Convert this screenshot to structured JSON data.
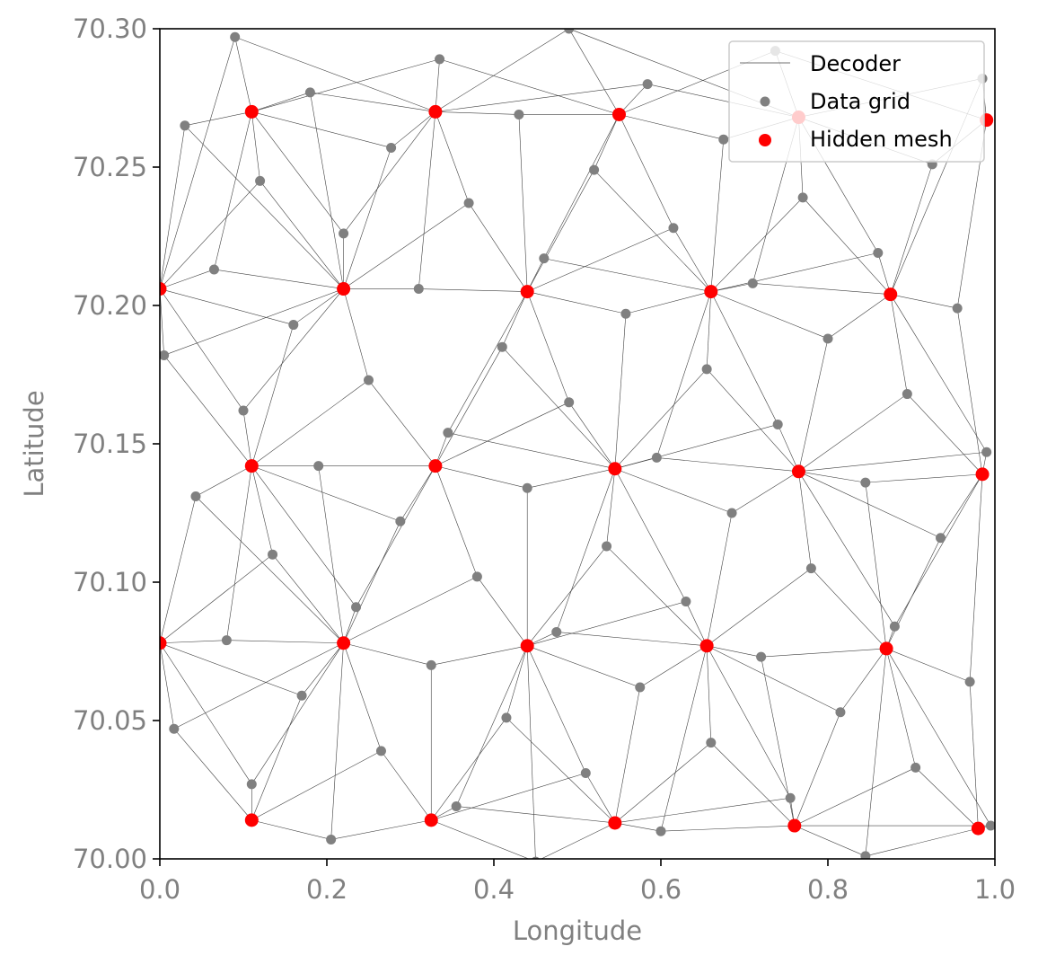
{
  "chart_data": {
    "type": "scatter",
    "xlabel": "Longitude",
    "ylabel": "Latitude",
    "xlim": [
      0.0,
      1.0
    ],
    "ylim": [
      70.0,
      70.3
    ],
    "x_ticks": [
      "0.0",
      "0.2",
      "0.4",
      "0.6",
      "0.8",
      "1.0"
    ],
    "y_ticks": [
      "70.00",
      "70.05",
      "70.10",
      "70.15",
      "70.20",
      "70.25",
      "70.30"
    ],
    "grid": false,
    "legend_position": "top-right",
    "colors": {
      "decoder": "#404040",
      "data_grid": "#808080",
      "hidden_mesh": "#ff0000",
      "axis": "#000000",
      "tick_text": "#808080"
    },
    "series": [
      {
        "name": "Decoder",
        "kind": "edges"
      },
      {
        "name": "Data grid",
        "kind": "points",
        "points": [
          [
            0.09,
            70.297
          ],
          [
            0.335,
            70.289
          ],
          [
            0.49,
            70.3
          ],
          [
            0.584,
            70.28
          ],
          [
            0.737,
            70.292
          ],
          [
            0.985,
            70.282
          ],
          [
            0.03,
            70.265
          ],
          [
            0.18,
            70.277
          ],
          [
            0.12,
            70.245
          ],
          [
            0.277,
            70.257
          ],
          [
            0.43,
            70.269
          ],
          [
            0.52,
            70.249
          ],
          [
            0.675,
            70.26
          ],
          [
            0.77,
            70.239
          ],
          [
            0.925,
            70.251
          ],
          [
            0.37,
            70.237
          ],
          [
            0.615,
            70.228
          ],
          [
            0.22,
            70.226
          ],
          [
            0.065,
            70.213
          ],
          [
            0.31,
            70.206
          ],
          [
            0.46,
            70.217
          ],
          [
            0.71,
            70.208
          ],
          [
            0.86,
            70.219
          ],
          [
            0.955,
            70.199
          ],
          [
            0.16,
            70.193
          ],
          [
            0.41,
            70.185
          ],
          [
            0.558,
            70.197
          ],
          [
            0.8,
            70.188
          ],
          [
            0.005,
            70.182
          ],
          [
            0.25,
            70.173
          ],
          [
            0.655,
            70.177
          ],
          [
            0.1,
            70.162
          ],
          [
            0.49,
            70.165
          ],
          [
            0.74,
            70.157
          ],
          [
            0.895,
            70.168
          ],
          [
            0.345,
            70.154
          ],
          [
            0.19,
            70.142
          ],
          [
            0.595,
            70.145
          ],
          [
            0.845,
            70.136
          ],
          [
            0.99,
            70.147
          ],
          [
            0.043,
            70.131
          ],
          [
            0.44,
            70.134
          ],
          [
            0.685,
            70.125
          ],
          [
            0.288,
            70.122
          ],
          [
            0.535,
            70.113
          ],
          [
            0.78,
            70.105
          ],
          [
            0.935,
            70.116
          ],
          [
            0.135,
            70.11
          ],
          [
            0.38,
            70.102
          ],
          [
            0.63,
            70.093
          ],
          [
            0.235,
            70.091
          ],
          [
            0.475,
            70.082
          ],
          [
            0.88,
            70.084
          ],
          [
            0.08,
            70.079
          ],
          [
            0.325,
            70.07
          ],
          [
            0.575,
            70.062
          ],
          [
            0.72,
            70.073
          ],
          [
            0.97,
            70.064
          ],
          [
            0.17,
            70.059
          ],
          [
            0.415,
            70.051
          ],
          [
            0.815,
            70.053
          ],
          [
            0.017,
            70.047
          ],
          [
            0.265,
            70.039
          ],
          [
            0.66,
            70.042
          ],
          [
            0.51,
            70.031
          ],
          [
            0.905,
            70.033
          ],
          [
            0.11,
            70.027
          ],
          [
            0.355,
            70.019
          ],
          [
            0.755,
            70.022
          ],
          [
            0.205,
            70.007
          ],
          [
            0.6,
            70.01
          ],
          [
            0.845,
            70.001
          ],
          [
            0.995,
            70.012
          ],
          [
            0.45,
            69.999
          ]
        ]
      },
      {
        "name": "Hidden mesh",
        "kind": "points",
        "points": [
          [
            0.11,
            70.27
          ],
          [
            0.33,
            70.27
          ],
          [
            0.55,
            70.269
          ],
          [
            0.765,
            70.268
          ],
          [
            0.99,
            70.267
          ],
          [
            0.0,
            70.206
          ],
          [
            0.22,
            70.206
          ],
          [
            0.44,
            70.205
          ],
          [
            0.66,
            70.205
          ],
          [
            0.875,
            70.204
          ],
          [
            0.11,
            70.142
          ],
          [
            0.33,
            70.142
          ],
          [
            0.545,
            70.141
          ],
          [
            0.765,
            70.14
          ],
          [
            0.985,
            70.139
          ],
          [
            0.0,
            70.078
          ],
          [
            0.22,
            70.078
          ],
          [
            0.44,
            70.077
          ],
          [
            0.655,
            70.077
          ],
          [
            0.87,
            70.076
          ],
          [
            0.11,
            70.014
          ],
          [
            0.325,
            70.014
          ],
          [
            0.545,
            70.013
          ],
          [
            0.76,
            70.012
          ],
          [
            0.98,
            70.011
          ]
        ]
      }
    ]
  }
}
